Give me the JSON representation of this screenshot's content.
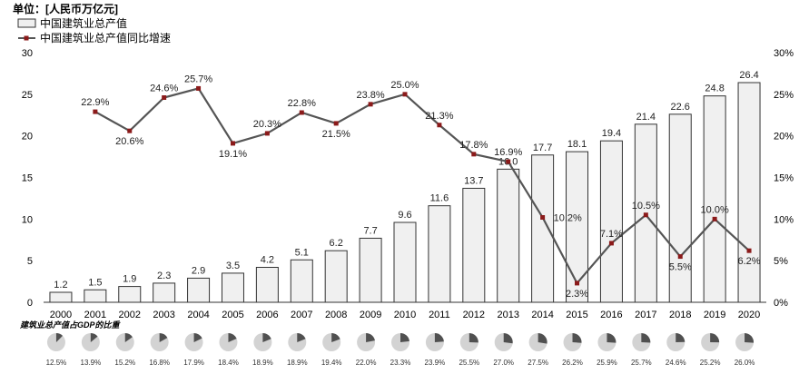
{
  "chart_data": {
    "type": "bar",
    "unit_label": "单位：[人民币万亿元]",
    "legend": [
      "中国建筑业总产值",
      "中国建筑业总产值同比增速"
    ],
    "categories": [
      "2000",
      "2001",
      "2002",
      "2003",
      "2004",
      "2005",
      "2006",
      "2007",
      "2008",
      "2009",
      "2010",
      "2011",
      "2012",
      "2013",
      "2014",
      "2015",
      "2016",
      "2017",
      "2018",
      "2019",
      "2020"
    ],
    "series": [
      {
        "name": "中国建筑业总产值",
        "type": "bar",
        "axis": "left",
        "values": [
          1.2,
          1.5,
          1.9,
          2.3,
          2.9,
          3.5,
          4.2,
          5.1,
          6.2,
          7.7,
          9.6,
          11.6,
          13.7,
          16.0,
          17.7,
          18.1,
          19.4,
          21.4,
          22.6,
          24.8,
          26.4
        ],
        "labels": [
          "1.2",
          "1.5",
          "1.9",
          "2.3",
          "2.9",
          "3.5",
          "4.2",
          "5.1",
          "6.2",
          "7.7",
          "9.6",
          "11.6",
          "13.7",
          "16.0",
          "17.7",
          "18.1",
          "19.4",
          "21.4",
          "22.6",
          "24.8",
          "26.4"
        ],
        "color": "#f0f0f0"
      },
      {
        "name": "中国建筑业总产值同比增速",
        "type": "line",
        "axis": "right",
        "values": [
          null,
          22.9,
          20.6,
          24.6,
          25.7,
          19.1,
          20.3,
          22.8,
          21.5,
          23.8,
          25.0,
          21.3,
          17.8,
          16.9,
          10.2,
          2.3,
          7.1,
          10.5,
          5.5,
          10.0,
          6.2
        ],
        "labels": [
          "",
          "22.9%",
          "20.6%",
          "24.6%",
          "25.7%",
          "19.1%",
          "20.3%",
          "22.8%",
          "21.5%",
          "23.8%",
          "25.0%",
          "21.3%",
          "17.8%",
          "16.9%",
          "10.2%",
          "2.3%",
          "7.1%",
          "10.5%",
          "5.5%",
          "10.0%",
          "6.2%"
        ],
        "color": "#555555",
        "marker_color": "#8b1a1a"
      }
    ],
    "left_axis": {
      "ylim": [
        0,
        30
      ],
      "ticks": [
        "0",
        "5",
        "10",
        "15",
        "20",
        "25",
        "30"
      ]
    },
    "right_axis": {
      "ylim": [
        0,
        30
      ],
      "ticks": [
        "0%",
        "5%",
        "10%",
        "15%",
        "20%",
        "25%",
        "30%"
      ]
    },
    "gdp_share": {
      "title": "建筑业总产值占GDP的比重",
      "values": [
        12.5,
        13.9,
        15.2,
        16.8,
        17.9,
        18.4,
        18.9,
        18.9,
        19.4,
        22.0,
        23.3,
        23.9,
        25.5,
        27.0,
        27.5,
        26.2,
        25.9,
        25.7,
        24.6,
        25.2,
        26.0
      ],
      "labels": [
        "12.5%",
        "13.9%",
        "15.2%",
        "16.8%",
        "17.9%",
        "18.4%",
        "18.9%",
        "18.9%",
        "19.4%",
        "22.0%",
        "23.3%",
        "23.9%",
        "25.5%",
        "27.0%",
        "27.5%",
        "26.2%",
        "25.9%",
        "25.7%",
        "24.6%",
        "25.2%",
        "26.0%"
      ],
      "fill_color": "#505050",
      "rest_color": "#d3d3d3"
    }
  }
}
